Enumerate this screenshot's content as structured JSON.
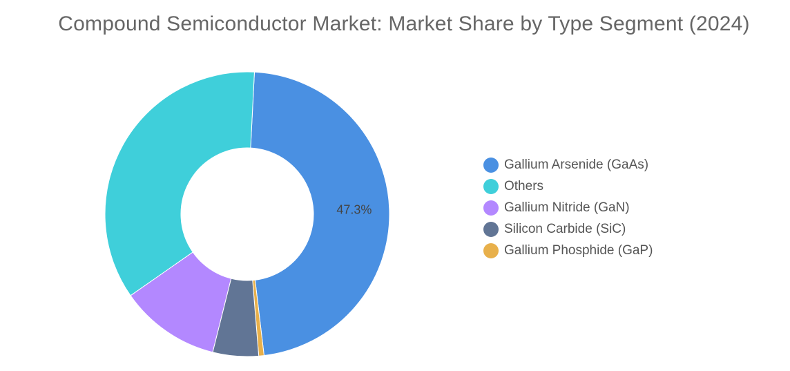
{
  "chart_data": {
    "type": "pie",
    "subtype": "donut",
    "title": "Compound Semiconductor Market: Market Share by Type Segment (2024)",
    "legend_position": "right",
    "slices": [
      {
        "label": "Gallium Arsenide (GaAs)",
        "value": 47.3,
        "color": "#4a90e2",
        "show_label": true,
        "display": "47.3%"
      },
      {
        "label": "Gallium Phosphide (GaP)",
        "value": 0.6,
        "color": "#e8b04b",
        "show_label": false
      },
      {
        "label": "Silicon Carbide (SiC)",
        "value": 5.2,
        "color": "#617595",
        "show_label": false
      },
      {
        "label": "Gallium Nitride (GaN)",
        "value": 11.4,
        "color": "#b388ff",
        "show_label": false
      },
      {
        "label": "Others",
        "value": 35.5,
        "color": "#3fcfda",
        "show_label": false
      }
    ],
    "legend_order": [
      "Gallium Arsenide (GaAs)",
      "Others",
      "Gallium Nitride (GaN)",
      "Silicon Carbide (SiC)",
      "Gallium Phosphide (GaP)"
    ]
  }
}
